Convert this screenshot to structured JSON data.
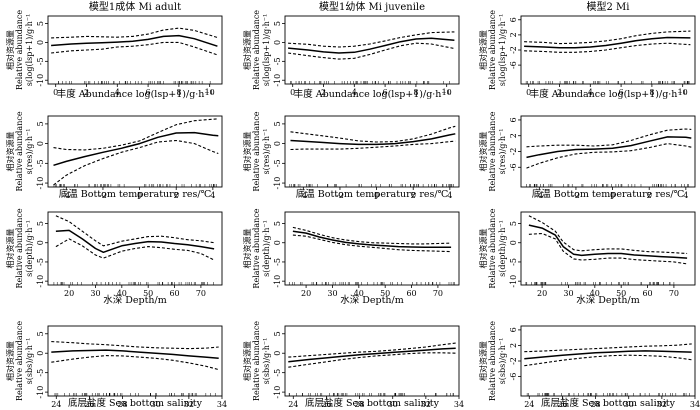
{
  "figure": {
    "rows": [
      {
        "xlabel": "丰度 Abundance log(lsp+1)/g·h⁻¹",
        "xlim": [
          -0.5,
          10.8
        ],
        "xticks": [
          0,
          2,
          4,
          6,
          8,
          10
        ],
        "ylim": [
          -11,
          7
        ],
        "yticks": [
          -10,
          -5,
          0,
          5
        ],
        "ylabel_cn": "相对资源量",
        "ylabel_en": "Relative abundance",
        "ylabel_fn": "s(log(lsp+1)/g·h⁻¹",
        "yticks_right": [
          -6,
          -2,
          2,
          6
        ]
      },
      {
        "xlabel": "底温 Bottom temperature res/℃",
        "xlim": [
          -5,
          4.5
        ],
        "xticks": [
          -4,
          -2,
          0,
          2,
          4
        ],
        "ylim": [
          -11,
          7
        ],
        "yticks": [
          -10,
          -5,
          0,
          5
        ],
        "ylabel_cn": "相对资源量",
        "ylabel_en": "Relative abundance",
        "ylabel_fn": "s(res)/g·h⁻¹",
        "yticks_mid": [
          -10,
          -5,
          0,
          5
        ],
        "yticks_right": [
          -6,
          -2,
          2,
          6
        ]
      },
      {
        "xlabel": "水深 Depth/m",
        "xlim": [
          12,
          78
        ],
        "xticks": [
          20,
          30,
          40,
          50,
          60,
          70
        ],
        "ylim": [
          -11,
          8
        ],
        "yticks": [
          -10,
          -5,
          0,
          5
        ],
        "ylabel_cn": "相对资源量",
        "ylabel_en": "Relative abundance",
        "ylabel_fn": "s(depth)/g·h⁻¹",
        "yticks_right": [
          -10,
          -5,
          0,
          5
        ]
      },
      {
        "xlabel": "底层盐度 Sea bottom salinity",
        "xlim": [
          23.5,
          34
        ],
        "xticks": [
          24,
          26,
          28,
          30,
          32,
          34
        ],
        "ylim": [
          -11,
          7
        ],
        "yticks": [
          -10,
          -5,
          0,
          5
        ],
        "ylabel_cn": "相对资源量",
        "ylabel_en": "Relative abundance",
        "ylabel_fn": "s(sbs)/g·h⁻¹",
        "yticks_right": [
          -6,
          -2,
          2,
          6
        ]
      }
    ],
    "col_titles": [
      "模型1成体 Mi adult",
      "模型1幼体 Mi juvenile",
      "模型2 Mi"
    ]
  },
  "chart_data": [
    {
      "type": "line",
      "row": 0,
      "col": 0,
      "x": [
        -0.3,
        1,
        2,
        3,
        4,
        5,
        6,
        7,
        8,
        9,
        10.5
      ],
      "series": [
        {
          "values": [
            -0.8,
            -0.4,
            -0.2,
            -0.1,
            0.1,
            0.3,
            0.8,
            1.6,
            1.8,
            1.0,
            -1.0
          ]
        },
        {
          "values": [
            1.2,
            1.4,
            1.6,
            1.5,
            1.4,
            1.6,
            2.2,
            3.3,
            3.8,
            3.2,
            1.3
          ]
        },
        {
          "values": [
            -2.8,
            -2.2,
            -2.0,
            -1.8,
            -1.2,
            -1.0,
            -0.6,
            0.0,
            0.0,
            -1.2,
            -3.3
          ]
        }
      ]
    },
    {
      "type": "line",
      "row": 0,
      "col": 1,
      "x": [
        -0.3,
        1,
        2,
        3,
        4,
        5,
        6,
        7,
        8,
        9,
        10.5
      ],
      "series": [
        {
          "values": [
            -1.5,
            -2.0,
            -2.5,
            -2.8,
            -2.6,
            -1.8,
            -0.8,
            0.2,
            0.9,
            1.1,
            0.6
          ]
        },
        {
          "values": [
            -0.2,
            -0.5,
            -1.0,
            -1.2,
            -1.0,
            -0.4,
            0.4,
            1.3,
            2.0,
            2.6,
            2.8
          ]
        },
        {
          "values": [
            -2.8,
            -3.5,
            -4.0,
            -4.4,
            -4.2,
            -3.2,
            -2.0,
            -0.9,
            -0.2,
            -0.4,
            -1.6
          ]
        }
      ]
    },
    {
      "type": "line",
      "row": 0,
      "col": 2,
      "x": [
        -0.3,
        1,
        2,
        3,
        4,
        5,
        6,
        7,
        8,
        9,
        10.5
      ],
      "series": [
        {
          "values": [
            -1.0,
            -1.2,
            -1.4,
            -1.4,
            -1.2,
            -0.8,
            -0.2,
            0.5,
            1.0,
            1.3,
            1.2
          ]
        },
        {
          "values": [
            0.2,
            0.0,
            -0.3,
            -0.2,
            0.0,
            0.4,
            1.0,
            1.8,
            2.4,
            2.8,
            3.0
          ]
        },
        {
          "values": [
            -2.2,
            -2.4,
            -2.6,
            -2.6,
            -2.4,
            -2.0,
            -1.4,
            -0.8,
            -0.4,
            -0.2,
            -0.6
          ]
        }
      ]
    },
    {
      "type": "line",
      "row": 1,
      "col": 0,
      "x": [
        -4.7,
        -4,
        -3,
        -2,
        -1,
        0,
        1,
        2,
        3,
        4,
        4.3
      ],
      "series": [
        {
          "values": [
            -5.5,
            -4.5,
            -3.3,
            -2.2,
            -1.2,
            0.0,
            1.6,
            2.7,
            2.8,
            2.1,
            2.0
          ]
        },
        {
          "values": [
            -1.0,
            -1.5,
            -1.6,
            -1.2,
            -0.4,
            0.7,
            2.8,
            4.8,
            5.8,
            6.2,
            6.3
          ]
        },
        {
          "values": [
            -10.5,
            -8.0,
            -5.6,
            -3.8,
            -2.2,
            -1.0,
            0.4,
            0.8,
            0.0,
            -2.0,
            -2.5
          ]
        }
      ]
    },
    {
      "type": "line",
      "row": 1,
      "col": 1,
      "x": [
        -4.7,
        -4,
        -3,
        -2,
        -1,
        0,
        1,
        2,
        3,
        4,
        4.3
      ],
      "series": [
        {
          "values": [
            0.8,
            0.6,
            0.3,
            0.0,
            -0.2,
            -0.2,
            0.0,
            0.5,
            1.2,
            2.2,
            2.5
          ]
        },
        {
          "values": [
            3.0,
            2.6,
            2.0,
            1.4,
            0.7,
            0.4,
            0.5,
            1.2,
            2.4,
            4.0,
            4.4
          ]
        },
        {
          "values": [
            -1.5,
            -1.4,
            -1.4,
            -1.4,
            -1.2,
            -0.9,
            -0.6,
            -0.2,
            0.0,
            0.5,
            0.6
          ]
        }
      ]
    },
    {
      "type": "line",
      "row": 1,
      "col": 2,
      "x": [
        -4.7,
        -4,
        -3,
        -2,
        -1,
        0,
        1,
        2,
        3,
        4,
        4.3
      ],
      "series": [
        {
          "values": [
            -3.5,
            -2.8,
            -2.0,
            -1.5,
            -1.4,
            -1.2,
            -0.5,
            0.6,
            1.7,
            1.6,
            1.4
          ]
        },
        {
          "values": [
            -0.8,
            -0.6,
            -0.4,
            -0.4,
            -0.6,
            -0.3,
            0.8,
            2.2,
            3.4,
            3.7,
            3.6
          ]
        },
        {
          "values": [
            -6.2,
            -5.0,
            -3.6,
            -2.6,
            -2.2,
            -2.1,
            -1.8,
            -1.0,
            0.0,
            -0.6,
            -0.9
          ]
        }
      ]
    },
    {
      "type": "line",
      "row": 2,
      "col": 0,
      "x": [
        15,
        20,
        25,
        30,
        33,
        35,
        40,
        45,
        50,
        55,
        60,
        65,
        70,
        75
      ],
      "series": [
        {
          "values": [
            3.0,
            3.2,
            1.0,
            -1.5,
            -2.5,
            -2.0,
            -0.8,
            -0.2,
            0.3,
            0.2,
            -0.2,
            -0.5,
            -1.0,
            -1.6
          ]
        },
        {
          "values": [
            7.0,
            5.5,
            3.0,
            0.5,
            -0.8,
            -0.5,
            0.4,
            1.0,
            1.6,
            1.7,
            1.3,
            0.8,
            0.5,
            0.0
          ]
        },
        {
          "values": [
            -1.0,
            1.0,
            -0.8,
            -3.2,
            -4.0,
            -3.5,
            -2.2,
            -1.5,
            -1.0,
            -1.3,
            -1.7,
            -2.0,
            -2.8,
            -4.5
          ]
        }
      ]
    },
    {
      "type": "line",
      "row": 2,
      "col": 1,
      "x": [
        15,
        20,
        25,
        30,
        35,
        40,
        45,
        50,
        55,
        60,
        65,
        70,
        75
      ],
      "series": [
        {
          "values": [
            3.0,
            2.5,
            1.5,
            0.7,
            0.1,
            -0.3,
            -0.6,
            -0.8,
            -1.0,
            -1.1,
            -1.2,
            -1.2,
            -1.2
          ]
        },
        {
          "values": [
            4.0,
            3.2,
            2.2,
            1.3,
            0.7,
            0.3,
            0.0,
            -0.1,
            -0.2,
            -0.3,
            -0.3,
            -0.2,
            -0.1
          ]
        },
        {
          "values": [
            2.0,
            1.7,
            0.9,
            0.1,
            -0.5,
            -0.9,
            -1.2,
            -1.5,
            -1.8,
            -2.0,
            -2.1,
            -2.2,
            -2.3
          ]
        }
      ]
    },
    {
      "type": "line",
      "row": 2,
      "col": 2,
      "x": [
        15,
        20,
        25,
        28,
        32,
        35,
        40,
        45,
        50,
        55,
        60,
        65,
        70,
        75
      ],
      "series": [
        {
          "values": [
            4.6,
            3.8,
            2.0,
            -1.0,
            -3.0,
            -3.3,
            -3.0,
            -2.8,
            -2.8,
            -3.2,
            -3.4,
            -3.6,
            -3.8,
            -4.0
          ]
        },
        {
          "values": [
            7.0,
            5.3,
            3.0,
            0.2,
            -1.8,
            -2.1,
            -1.8,
            -1.6,
            -1.6,
            -2.0,
            -2.3,
            -2.4,
            -2.6,
            -2.8
          ]
        },
        {
          "values": [
            2.2,
            2.4,
            1.0,
            -2.2,
            -4.2,
            -4.5,
            -4.3,
            -4.0,
            -4.0,
            -4.4,
            -4.6,
            -4.8,
            -5.0,
            -5.5
          ]
        }
      ]
    },
    {
      "type": "line",
      "row": 3,
      "col": 0,
      "x": [
        23.7,
        25,
        26,
        27,
        28,
        29,
        30,
        31,
        32,
        33,
        33.8
      ],
      "series": [
        {
          "values": [
            0.3,
            0.6,
            0.7,
            0.8,
            0.6,
            0.3,
            0.0,
            -0.3,
            -0.7,
            -1.0,
            -1.3
          ]
        },
        {
          "values": [
            3.0,
            2.7,
            2.4,
            2.2,
            1.9,
            1.6,
            1.4,
            1.3,
            1.2,
            1.3,
            1.6
          ]
        },
        {
          "values": [
            -2.3,
            -1.5,
            -1.0,
            -0.6,
            -0.7,
            -1.0,
            -1.3,
            -1.8,
            -2.5,
            -3.3,
            -4.2
          ]
        }
      ]
    },
    {
      "type": "line",
      "row": 3,
      "col": 1,
      "x": [
        23.7,
        25,
        26,
        27,
        28,
        29,
        30,
        31,
        32,
        33,
        33.8
      ],
      "series": [
        {
          "values": [
            -2.2,
            -1.6,
            -1.2,
            -0.8,
            -0.4,
            -0.1,
            0.2,
            0.5,
            0.8,
            1.1,
            1.3
          ]
        },
        {
          "values": [
            -1.0,
            -0.6,
            -0.3,
            0.0,
            0.3,
            0.5,
            0.8,
            1.2,
            1.6,
            2.2,
            2.6
          ]
        },
        {
          "values": [
            -3.6,
            -2.8,
            -2.2,
            -1.6,
            -1.1,
            -0.7,
            -0.4,
            -0.1,
            0.1,
            0.1,
            0.0
          ]
        }
      ]
    },
    {
      "type": "line",
      "row": 3,
      "col": 2,
      "x": [
        23.7,
        25,
        26,
        27,
        28,
        29,
        30,
        31,
        32,
        33,
        33.8
      ],
      "series": [
        {
          "values": [
            -1.4,
            -0.9,
            -0.5,
            -0.2,
            0.1,
            0.3,
            0.5,
            0.6,
            0.5,
            0.4,
            0.3
          ]
        },
        {
          "values": [
            0.4,
            0.6,
            0.8,
            1.0,
            1.2,
            1.4,
            1.6,
            1.8,
            1.9,
            2.1,
            2.4
          ]
        },
        {
          "values": [
            -3.2,
            -2.4,
            -1.8,
            -1.3,
            -0.9,
            -0.6,
            -0.5,
            -0.6,
            -0.8,
            -1.2,
            -1.7
          ]
        }
      ]
    }
  ]
}
